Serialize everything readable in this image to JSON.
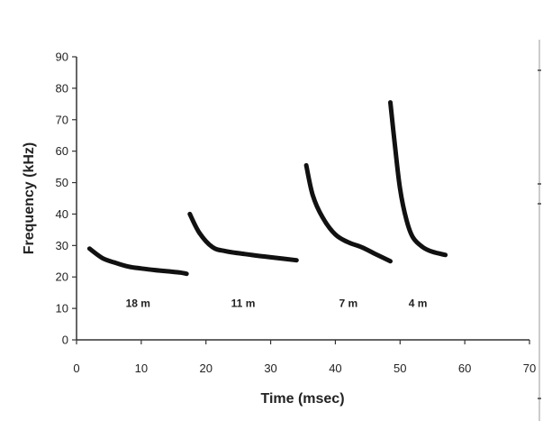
{
  "chart_data": {
    "type": "line",
    "title": "",
    "xlabel": "Time (msec)",
    "ylabel": "Frequency (kHz)",
    "xlim": [
      0,
      70
    ],
    "ylim": [
      0,
      90
    ],
    "x_ticks": [
      0,
      10,
      20,
      30,
      40,
      50,
      60,
      70
    ],
    "y_ticks": [
      0,
      10,
      20,
      30,
      40,
      50,
      60,
      70,
      80,
      90
    ],
    "grid": false,
    "legend": "none",
    "line_color": "#111111",
    "series": [
      {
        "label": "18 m",
        "x": [
          2,
          4,
          6,
          8,
          10,
          12,
          14,
          16,
          17
        ],
        "y": [
          29,
          26,
          24.5,
          23.3,
          22.7,
          22.2,
          21.8,
          21.4,
          21
        ]
      },
      {
        "label": "11 m",
        "x": [
          17.5,
          19,
          21,
          23,
          26,
          29,
          32,
          34
        ],
        "y": [
          40,
          34,
          29.5,
          28.2,
          27.3,
          26.5,
          25.8,
          25.3
        ]
      },
      {
        "label": "7 m",
        "x": [
          35.5,
          36.5,
          38,
          40,
          42,
          44,
          46,
          48.5
        ],
        "y": [
          55.5,
          46,
          39,
          33.5,
          31,
          29.5,
          27.5,
          25
        ]
      },
      {
        "label": "4 m",
        "x": [
          48.5,
          49.2,
          50,
          51,
          52,
          53.5,
          55,
          57
        ],
        "y": [
          75.5,
          62,
          48,
          38,
          32.5,
          29.5,
          28,
          27
        ]
      }
    ]
  }
}
